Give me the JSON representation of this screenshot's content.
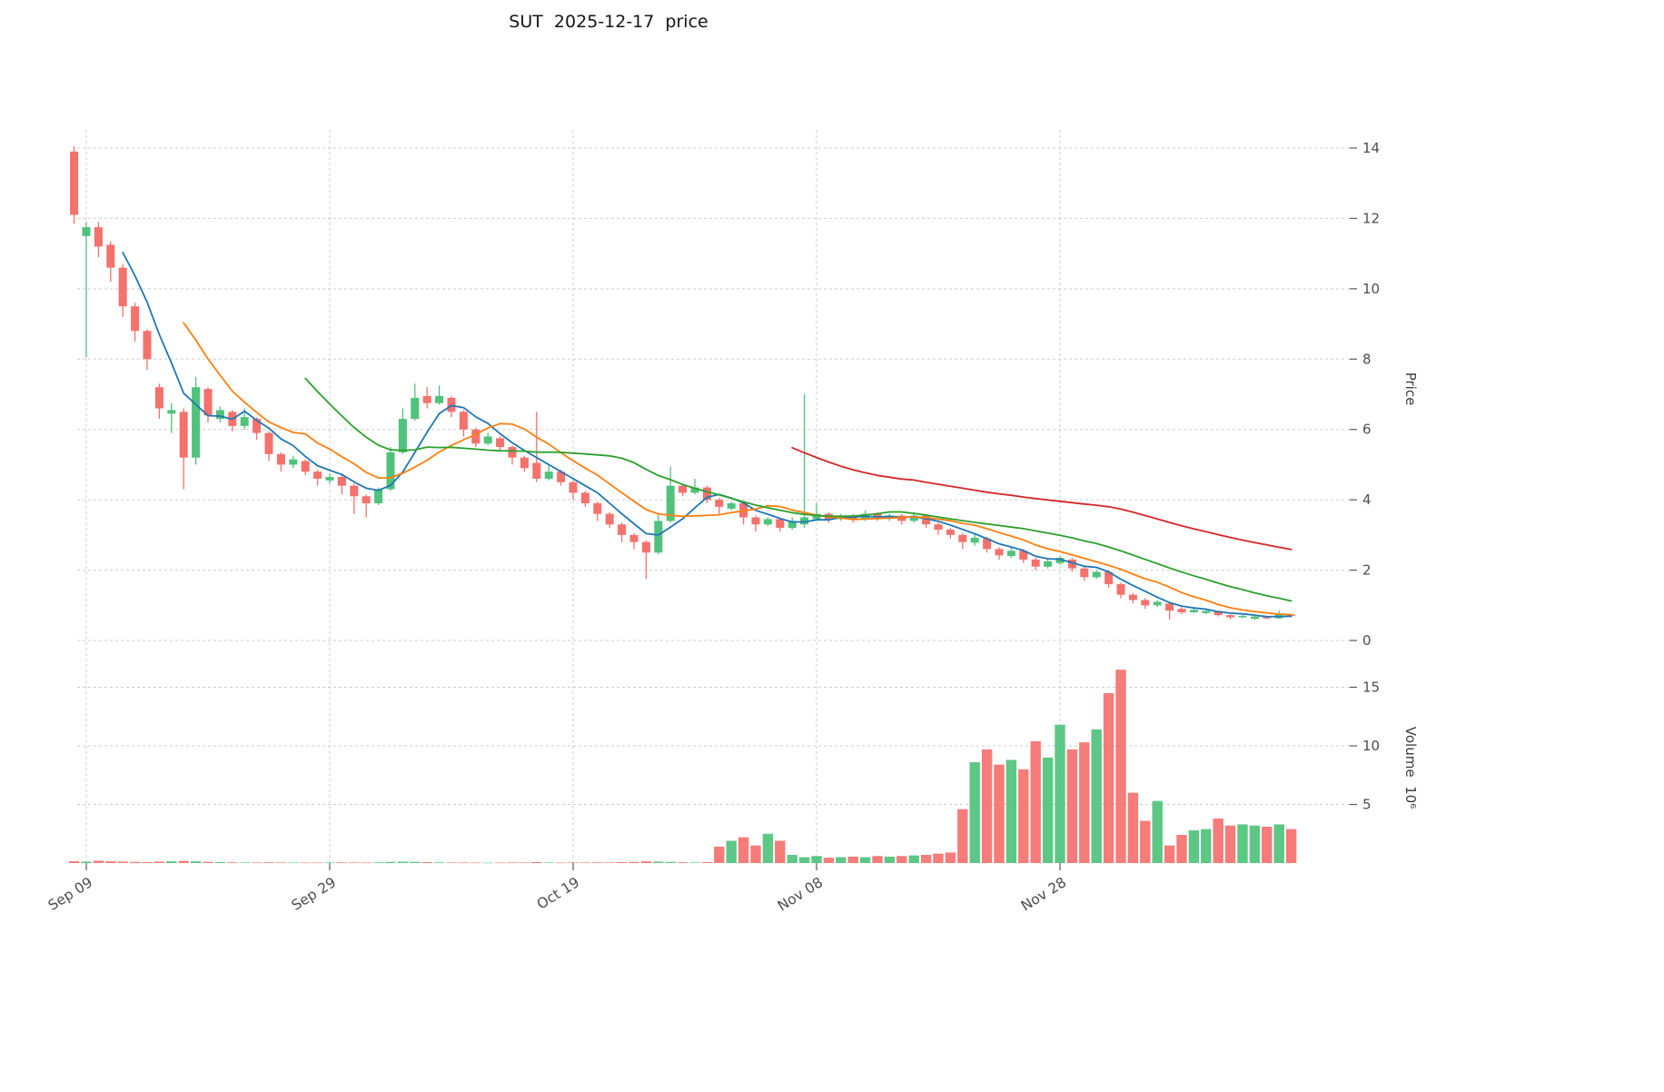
{
  "title": "SUT  2025-12-17  price",
  "chart_data": {
    "type": "candlestick",
    "title": "SUT  2025-12-17  price",
    "grid": true,
    "legend_position": "none",
    "x_ticks": {
      "labels": [
        "Sep 09",
        "Sep 29",
        "Oct 19",
        "Nov 08",
        "Nov 28"
      ],
      "indices": [
        1,
        21,
        41,
        61,
        81
      ]
    },
    "price_axis": {
      "label": "Price",
      "ticks": [
        0,
        2,
        4,
        6,
        8,
        10,
        12,
        14
      ],
      "range": [
        -0.4,
        14.6
      ]
    },
    "volume_axis": {
      "label": "Volume  10⁶",
      "ticks": [
        5,
        10,
        15
      ],
      "range": [
        0,
        17
      ]
    },
    "colors": {
      "up": "#4fc27b",
      "down": "#f4716c",
      "ma5": "#1f77b4",
      "ma10": "#ff7f0e",
      "ma20": "#2ca02c",
      "ma60": "#d62728",
      "grid": "#cdcdcd",
      "background": "#ffffff"
    },
    "moving_averages": [
      {
        "window": 5,
        "color": "#1f77b4"
      },
      {
        "window": 10,
        "color": "#ff7f0e"
      },
      {
        "window": 20,
        "color": "#2ca02c"
      },
      {
        "window": 60,
        "color": "#d62728"
      }
    ],
    "open": [
      13.9,
      11.5,
      11.75,
      11.25,
      10.6,
      9.5,
      8.8,
      7.2,
      6.45,
      6.5,
      5.2,
      7.15,
      6.3,
      6.5,
      6.1,
      6.3,
      5.9,
      5.3,
      5.0,
      5.1,
      4.8,
      4.55,
      4.65,
      4.4,
      4.1,
      3.9,
      4.3,
      5.35,
      6.3,
      6.95,
      6.75,
      6.9,
      6.5,
      6.0,
      5.6,
      5.75,
      5.5,
      5.2,
      5.05,
      4.6,
      4.8,
      4.5,
      4.2,
      3.9,
      3.6,
      3.3,
      3.0,
      2.8,
      2.5,
      3.4,
      4.4,
      4.2,
      4.35,
      4.0,
      3.75,
      3.9,
      3.5,
      3.3,
      3.45,
      3.2,
      3.3,
      3.45,
      3.6,
      3.45,
      3.55,
      3.45,
      3.6,
      3.5,
      3.55,
      3.4,
      3.55,
      3.3,
      3.15,
      3.0,
      2.78,
      2.9,
      2.6,
      2.4,
      2.55,
      2.3,
      2.1,
      2.2,
      2.3,
      2.05,
      1.8,
      1.95,
      1.6,
      1.3,
      1.15,
      1.0,
      1.05,
      0.9,
      0.8,
      0.78,
      0.84,
      0.72,
      0.66,
      0.62,
      0.68,
      0.63,
      0.74
    ],
    "high": [
      14.05,
      11.9,
      11.9,
      11.35,
      10.7,
      9.6,
      8.85,
      7.3,
      6.75,
      6.6,
      7.5,
      7.2,
      6.65,
      6.55,
      6.6,
      6.35,
      5.95,
      5.35,
      5.25,
      5.15,
      4.85,
      4.75,
      4.7,
      4.45,
      4.15,
      4.35,
      5.5,
      6.6,
      7.3,
      7.2,
      7.25,
      6.95,
      6.55,
      6.05,
      5.9,
      5.8,
      5.55,
      5.25,
      6.5,
      5.0,
      4.85,
      4.55,
      4.25,
      3.95,
      3.65,
      3.35,
      3.05,
      2.85,
      3.6,
      4.95,
      4.45,
      4.6,
      4.4,
      4.05,
      3.95,
      3.95,
      3.55,
      3.5,
      3.5,
      3.5,
      7.0,
      3.9,
      3.65,
      3.6,
      3.6,
      3.7,
      3.65,
      3.6,
      3.6,
      3.65,
      3.6,
      3.35,
      3.2,
      3.05,
      3.05,
      2.95,
      2.65,
      2.65,
      2.6,
      2.35,
      2.35,
      2.4,
      2.35,
      2.1,
      2.0,
      2.0,
      1.65,
      1.35,
      1.2,
      1.15,
      1.1,
      0.95,
      0.9,
      0.88,
      0.85,
      0.75,
      0.72,
      0.7,
      0.7,
      0.85,
      0.76
    ],
    "low": [
      11.85,
      8.05,
      10.9,
      10.2,
      9.2,
      8.5,
      7.7,
      6.3,
      5.9,
      4.3,
      5.0,
      6.2,
      6.2,
      5.95,
      6.0,
      5.7,
      5.1,
      4.8,
      4.9,
      4.7,
      4.4,
      4.45,
      4.15,
      3.6,
      3.5,
      3.85,
      4.25,
      5.3,
      6.25,
      6.6,
      6.7,
      6.35,
      5.8,
      5.5,
      5.55,
      5.4,
      5.0,
      4.8,
      4.5,
      4.55,
      4.4,
      4.0,
      3.8,
      3.4,
      3.2,
      2.8,
      2.6,
      1.75,
      2.45,
      3.35,
      4.1,
      4.15,
      3.9,
      3.6,
      3.7,
      3.3,
      3.1,
      3.25,
      3.1,
      3.15,
      3.2,
      3.4,
      3.35,
      3.4,
      3.35,
      3.4,
      3.4,
      3.4,
      3.3,
      3.35,
      3.2,
      3.0,
      2.9,
      2.6,
      2.7,
      2.5,
      2.3,
      2.35,
      2.2,
      2.0,
      2.05,
      2.15,
      1.95,
      1.7,
      1.75,
      1.5,
      1.2,
      1.05,
      0.9,
      0.95,
      0.6,
      0.75,
      0.78,
      0.75,
      0.68,
      0.6,
      0.63,
      0.58,
      0.6,
      0.62,
      0.66
    ],
    "close": [
      12.1,
      11.75,
      11.2,
      10.6,
      9.5,
      8.8,
      8.0,
      6.6,
      6.55,
      5.2,
      7.2,
      6.4,
      6.55,
      6.1,
      6.35,
      5.9,
      5.3,
      5.0,
      5.15,
      4.8,
      4.6,
      4.65,
      4.4,
      4.1,
      3.9,
      4.3,
      5.35,
      6.3,
      6.9,
      6.75,
      6.95,
      6.5,
      6.0,
      5.6,
      5.8,
      5.5,
      5.2,
      4.9,
      4.6,
      4.8,
      4.5,
      4.2,
      3.9,
      3.6,
      3.3,
      3.0,
      2.8,
      2.5,
      3.4,
      4.4,
      4.2,
      4.35,
      4.0,
      3.8,
      3.9,
      3.5,
      3.3,
      3.45,
      3.2,
      3.4,
      3.5,
      3.6,
      3.45,
      3.55,
      3.45,
      3.6,
      3.5,
      3.55,
      3.4,
      3.55,
      3.3,
      3.15,
      3.0,
      2.8,
      2.92,
      2.6,
      2.42,
      2.55,
      2.3,
      2.1,
      2.25,
      2.35,
      2.05,
      1.8,
      1.95,
      1.6,
      1.3,
      1.15,
      1.0,
      1.1,
      0.85,
      0.8,
      0.87,
      0.84,
      0.72,
      0.66,
      0.7,
      0.68,
      0.63,
      0.74,
      0.7
    ],
    "volume_millions": [
      0.15,
      0.12,
      0.2,
      0.15,
      0.12,
      0.1,
      0.08,
      0.12,
      0.15,
      0.18,
      0.15,
      0.1,
      0.08,
      0.06,
      0.05,
      0.05,
      0.06,
      0.05,
      0.04,
      0.04,
      0.04,
      0.05,
      0.06,
      0.05,
      0.04,
      0.06,
      0.1,
      0.12,
      0.1,
      0.08,
      0.06,
      0.05,
      0.05,
      0.04,
      0.03,
      0.04,
      0.05,
      0.05,
      0.08,
      0.05,
      0.04,
      0.05,
      0.05,
      0.06,
      0.05,
      0.08,
      0.1,
      0.15,
      0.12,
      0.1,
      0.06,
      0.05,
      0.08,
      1.4,
      1.9,
      2.2,
      1.5,
      2.5,
      1.9,
      0.7,
      0.5,
      0.6,
      0.45,
      0.5,
      0.55,
      0.5,
      0.6,
      0.55,
      0.6,
      0.65,
      0.7,
      0.8,
      0.9,
      4.6,
      8.6,
      9.7,
      8.4,
      8.8,
      8.0,
      10.4,
      9.0,
      11.8,
      9.7,
      10.3,
      11.4,
      14.5,
      16.5,
      6.0,
      3.6,
      5.3,
      1.5,
      2.4,
      2.8,
      2.9,
      3.8,
      3.2,
      3.3,
      3.2,
      3.1,
      3.3,
      2.9
    ]
  }
}
